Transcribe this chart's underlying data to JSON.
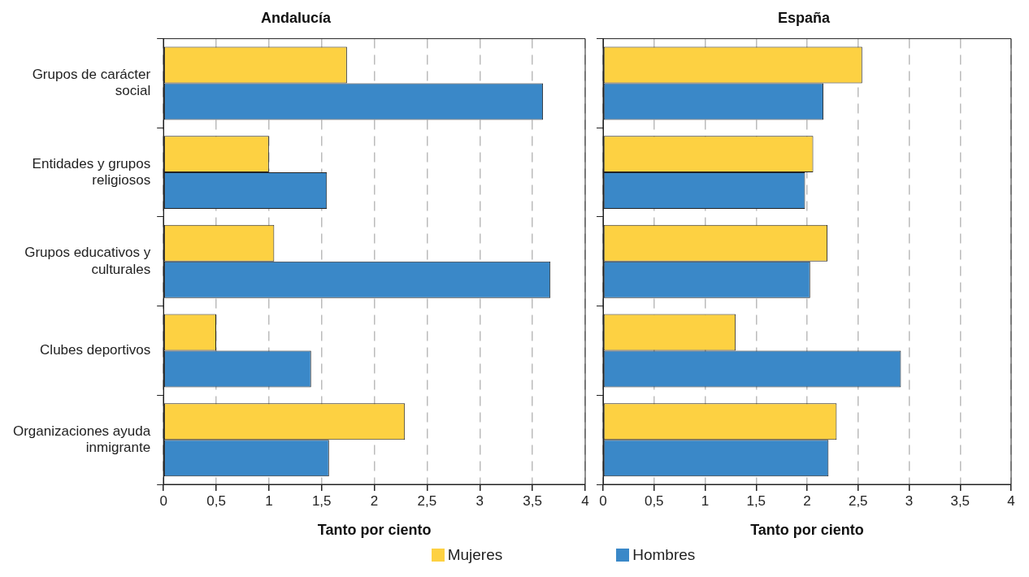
{
  "chart_data": [
    {
      "type": "bar",
      "orientation": "horizontal",
      "title": "Andalucía",
      "xlabel": "Tanto por ciento",
      "categories": [
        "Grupos de carácter social",
        "Entidades y grupos religiosos",
        "Grupos educativos y culturales",
        "Clubes deportivos",
        "Organizaciones ayuda inmigrante"
      ],
      "series": [
        {
          "name": "Mujeres",
          "color": "#fdd142",
          "values": [
            1.74,
            1.0,
            1.05,
            0.5,
            2.29
          ]
        },
        {
          "name": "Hombres",
          "color": "#3a88c8",
          "values": [
            3.6,
            1.55,
            3.67,
            1.4,
            1.57
          ]
        }
      ],
      "xlim": [
        0,
        4
      ],
      "xticks": [
        0,
        {
          "value": 0.5,
          "label": "0,5"
        },
        1,
        {
          "value": 1.5,
          "label": "1,5"
        },
        2,
        {
          "value": 2.5,
          "label": "2,5"
        },
        3,
        {
          "value": 3.5,
          "label": "3,5"
        },
        4
      ],
      "grid": "x",
      "legend": "bottom"
    },
    {
      "type": "bar",
      "orientation": "horizontal",
      "title": "España",
      "xlabel": "Tanto por ciento",
      "categories": [
        null,
        null,
        null,
        null,
        null
      ],
      "series": [
        {
          "color": "#fdd142",
          "values": [
            2.54,
            2.06,
            2.2,
            1.3,
            2.29
          ]
        },
        {
          "color": "#3a88c8",
          "values": [
            2.16,
            1.98,
            2.03,
            2.92,
            2.21
          ]
        }
      ],
      "xlim": [
        0,
        4
      ],
      "xticks": [
        0,
        {
          "value": 0.5,
          "label": "0,5"
        },
        1,
        {
          "value": 1.5,
          "label": "1,5"
        },
        2,
        {
          "value": 2.5,
          "label": "2,5"
        },
        3,
        {
          "value": 3.5,
          "label": "3,5"
        },
        4
      ],
      "grid": "x",
      "tick_labels": "x"
    }
  ]
}
